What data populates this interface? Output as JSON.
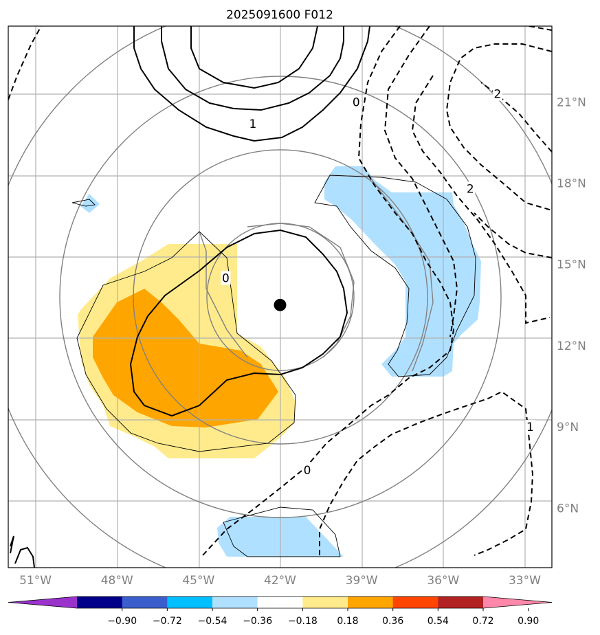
{
  "title": "2025091600 F012",
  "map": {
    "lon_ticks": [
      "51°W",
      "48°W",
      "45°W",
      "42°W",
      "39°W",
      "36°W",
      "33°W"
    ],
    "lat_ticks": [
      "21°N",
      "18°N",
      "15°N",
      "12°N",
      "9°N",
      "6°N"
    ],
    "lon_range": [
      -52,
      -32
    ],
    "lat_range": [
      3.8,
      23.8
    ],
    "center_marker": {
      "lon": -42.0,
      "lat": 13.5
    }
  },
  "contour_labels": [
    {
      "text": "0",
      "lon": -39.2,
      "lat": 21.0
    },
    {
      "text": "1",
      "lon": -43.0,
      "lat": 20.2
    },
    {
      "text": "2",
      "lon": -34.0,
      "lat": 21.3
    },
    {
      "text": "2",
      "lon": -35.0,
      "lat": 17.8
    },
    {
      "text": "0",
      "lon": -44.0,
      "lat": 14.5
    },
    {
      "text": "0",
      "lon": -41.0,
      "lat": 7.4
    },
    {
      "text": "1",
      "lon": -32.8,
      "lat": 9.0
    }
  ],
  "colorbar": {
    "colors": [
      "#9933cc",
      "#000088",
      "#3a5fcd",
      "#00bfff",
      "#b0e0ff",
      "#ffffff",
      "#ffeb8c",
      "#ffa500",
      "#ff4500",
      "#b22222",
      "#ff88aa"
    ],
    "tick_labels": [
      "−0.90",
      "−0.72",
      "−0.54",
      "−0.36",
      "−0.18",
      "0.18",
      "0.36",
      "0.54",
      "0.72",
      "0.90"
    ]
  }
}
